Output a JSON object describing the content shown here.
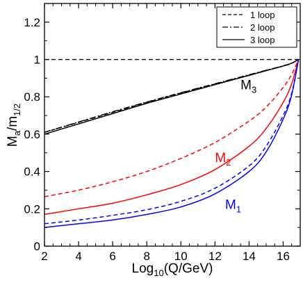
{
  "chart_data": {
    "type": "line",
    "xlabel": {
      "prefix": "Log",
      "sub": "10",
      "suffix": "(Q/GeV)"
    },
    "ylabel": {
      "main": "M",
      "sub1": "a",
      "mid": "/m",
      "sub2": "1/2"
    },
    "xlim": [
      2,
      17
    ],
    "ylim": [
      0,
      1.3
    ],
    "xticks": [
      2,
      4,
      6,
      8,
      10,
      12,
      14,
      16
    ],
    "yticks": [
      0,
      0.2,
      0.4,
      0.6,
      0.8,
      1,
      1.2
    ],
    "ytick_labels": [
      "0",
      "0.2",
      "0.4",
      "0.6",
      "0.8",
      "1",
      "1.2"
    ],
    "grid": false,
    "legend_position": "top-right",
    "legend": [
      {
        "label": "1 loop",
        "style": "dashed"
      },
      {
        "label": "2 loop",
        "style": "dashdot"
      },
      {
        "label": "3 loop",
        "style": "solid"
      }
    ],
    "reference_line": {
      "y": 1,
      "style": "dashed",
      "color": "#000000"
    },
    "curve_labels": [
      {
        "main": "M",
        "sub": "3",
        "x": 13.5,
        "y": 0.84,
        "color": "#000000"
      },
      {
        "main": "M",
        "sub": "2",
        "x": 12.0,
        "y": 0.45,
        "color": "#ff0000"
      },
      {
        "main": "M",
        "sub": "1",
        "x": 12.6,
        "y": 0.2,
        "color": "#0000ff"
      }
    ],
    "x": [
      2,
      4,
      6,
      8,
      10,
      12,
      14,
      15,
      16,
      16.5,
      16.9
    ],
    "series": [
      {
        "group": "M3",
        "style": "solid",
        "color": "#000000",
        "values": [
          0.6,
          0.655,
          0.71,
          0.765,
          0.815,
          0.865,
          0.915,
          0.94,
          0.965,
          0.98,
          1.0
        ]
      },
      {
        "group": "M3",
        "style": "dashdot",
        "color": "#000000",
        "values": [
          0.61,
          0.665,
          0.72,
          0.772,
          0.822,
          0.87,
          0.918,
          0.942,
          0.966,
          0.98,
          1.0
        ]
      },
      {
        "group": "M3",
        "style": "dashed",
        "color": "#000000",
        "values": [
          0.61,
          0.663,
          0.717,
          0.77,
          0.82,
          0.868,
          0.916,
          0.941,
          0.965,
          0.98,
          1.0
        ]
      },
      {
        "group": "M2",
        "style": "dashed",
        "color": "#ff0000",
        "values": [
          0.265,
          0.3,
          0.345,
          0.4,
          0.47,
          0.555,
          0.67,
          0.745,
          0.85,
          0.92,
          1.0
        ]
      },
      {
        "group": "M2",
        "style": "solid",
        "color": "#ff0000",
        "values": [
          0.17,
          0.2,
          0.23,
          0.275,
          0.33,
          0.41,
          0.535,
          0.63,
          0.77,
          0.87,
          1.0
        ]
      },
      {
        "group": "M1",
        "style": "dashed",
        "color": "#0000ff",
        "values": [
          0.12,
          0.14,
          0.165,
          0.195,
          0.24,
          0.31,
          0.43,
          0.535,
          0.7,
          0.82,
          1.0
        ]
      },
      {
        "group": "M1",
        "style": "solid",
        "color": "#0000ff",
        "values": [
          0.1,
          0.12,
          0.14,
          0.17,
          0.21,
          0.28,
          0.4,
          0.505,
          0.68,
          0.81,
          1.0
        ]
      }
    ]
  }
}
